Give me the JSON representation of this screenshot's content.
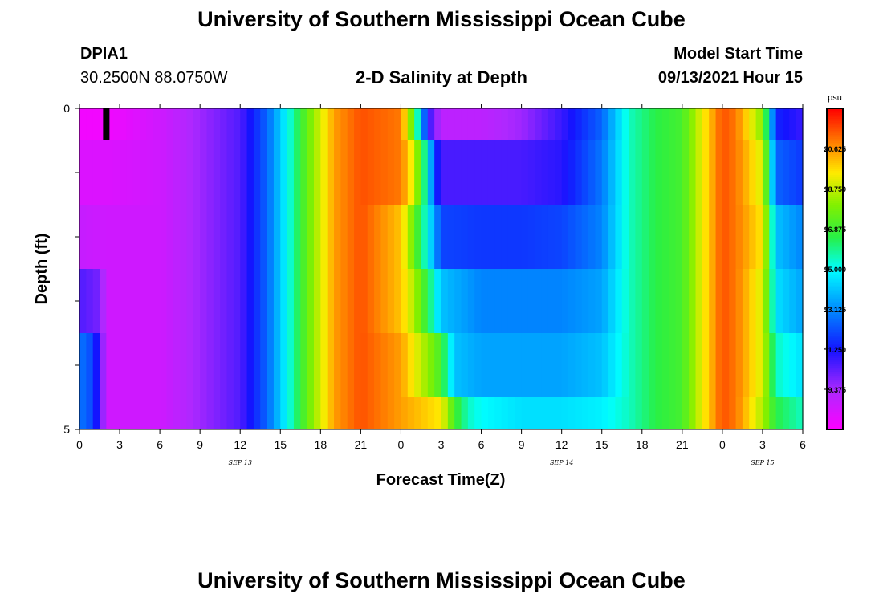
{
  "header": {
    "title": "University of Southern Mississippi Ocean Cube",
    "station_id": "DPIA1",
    "station_coords": "30.2500N  88.0750W",
    "plot_title": "2-D Salinity at Depth",
    "model_start_label": "Model Start Time",
    "model_start_value": "09/13/2021 Hour 15"
  },
  "footer": {
    "title": "University of Southern Mississippi Ocean Cube"
  },
  "chart_data": {
    "type": "heatmap",
    "title": "2-D Salinity at Depth",
    "xlabel": "Forecast Time(Z)",
    "ylabel": "Depth (ft)",
    "x_unit": "hours from Sep 13 00Z",
    "xlim": [
      0,
      54
    ],
    "ylim": [
      0,
      5
    ],
    "x_ticks": [
      0,
      3,
      6,
      9,
      12,
      15,
      18,
      21,
      24,
      27,
      30,
      33,
      36,
      39,
      42,
      45,
      48,
      51,
      54
    ],
    "x_tick_labels": [
      "0",
      "3",
      "6",
      "9",
      "12",
      "15",
      "18",
      "21",
      "0",
      "3",
      "6",
      "9",
      "12",
      "15",
      "18",
      "21",
      "0",
      "3",
      "6"
    ],
    "y_ticks": [
      0,
      1,
      2,
      3,
      4,
      5
    ],
    "y_tick_labels": [
      "0",
      "",
      "",
      "",
      "",
      "5"
    ],
    "date_labels": [
      {
        "x": 12,
        "text": "SEP 13"
      },
      {
        "x": 36,
        "text": "SEP 14"
      },
      {
        "x": 51,
        "text": "SEP 15"
      }
    ],
    "colorbar": {
      "unit": "psu",
      "vmin": 7.5,
      "vmax": 22.5,
      "ticks": [
        9.375,
        11.25,
        13.125,
        15.0,
        16.875,
        18.75,
        20.625
      ],
      "tick_labels": [
        "9.375",
        "11.250",
        "13.125",
        "15.000",
        "16.875",
        "18.750",
        "20.625"
      ]
    },
    "depth_layers": [
      0,
      1,
      2,
      3,
      4,
      5
    ],
    "salinity_profiles": [
      {
        "depth_band": "0-0.5",
        "x": [
          0,
          2,
          6,
          9,
          12,
          14,
          17,
          19,
          21,
          24,
          25,
          26,
          27,
          30,
          33,
          36,
          39,
          41,
          43,
          45,
          48,
          49,
          51,
          52,
          54
        ],
        "values": [
          7.8,
          7.8,
          8.6,
          9.5,
          10.5,
          12.5,
          17.5,
          20.5,
          21.5,
          21.0,
          17.0,
          11.0,
          9.0,
          9.0,
          9.5,
          10.8,
          12.5,
          15.5,
          16.5,
          17.0,
          21.5,
          21.0,
          18.0,
          11.5,
          10.8
        ]
      },
      {
        "depth_band": "0.5-1.5",
        "x": [
          0,
          2,
          6,
          9,
          12,
          14,
          17,
          19,
          21,
          24,
          25,
          26,
          26.5,
          27,
          30,
          33,
          36,
          39,
          41,
          43,
          45,
          48,
          49,
          51,
          52,
          54
        ],
        "values": [
          8.3,
          8.3,
          8.6,
          9.5,
          10.5,
          12.5,
          17.5,
          20.5,
          21.5,
          21.0,
          19.0,
          15.0,
          12.0,
          10.6,
          10.6,
          10.6,
          11.0,
          12.8,
          15.5,
          16.5,
          17.0,
          21.5,
          21.0,
          19.0,
          12.5,
          11.8
        ]
      },
      {
        "depth_band": "1.5-2.5",
        "x": [
          0,
          2,
          6,
          9,
          12,
          14,
          17,
          19,
          21,
          24,
          25,
          26,
          27,
          30,
          33,
          36,
          39,
          41,
          43,
          45,
          48,
          49,
          51,
          52,
          54
        ],
        "values": [
          8.8,
          8.6,
          8.6,
          9.5,
          10.5,
          12.5,
          17.5,
          20.5,
          21.5,
          20.0,
          17.5,
          15.0,
          12.0,
          11.8,
          11.8,
          12.0,
          13.0,
          15.5,
          16.5,
          17.0,
          21.5,
          21.0,
          19.5,
          14.0,
          13.0
        ]
      },
      {
        "depth_band": "2.5-3.5",
        "x": [
          0,
          1.5,
          2,
          6,
          9,
          12,
          14,
          17,
          19,
          21,
          24,
          25,
          26,
          27,
          30,
          33,
          36,
          39,
          41,
          43,
          45,
          48,
          49,
          51,
          52,
          54
        ],
        "values": [
          10.5,
          10.0,
          8.6,
          8.6,
          9.5,
          10.5,
          12.5,
          17.5,
          20.5,
          21.5,
          20.0,
          18.5,
          16.5,
          14.0,
          13.0,
          13.0,
          13.0,
          13.5,
          15.5,
          16.5,
          17.0,
          21.5,
          21.0,
          19.0,
          14.5,
          13.5
        ]
      },
      {
        "depth_band": "3.5-4.5",
        "x": [
          0,
          1,
          1.5,
          2,
          6,
          9,
          12,
          14,
          17,
          19,
          21,
          24,
          27,
          28,
          30,
          33,
          36,
          39,
          41,
          43,
          45,
          48,
          49,
          51,
          52,
          54
        ],
        "values": [
          12.8,
          12.0,
          10.5,
          8.6,
          8.6,
          9.5,
          10.5,
          12.5,
          17.5,
          20.5,
          21.5,
          20.5,
          17.0,
          14.0,
          13.5,
          13.5,
          13.5,
          14.0,
          15.5,
          16.5,
          17.0,
          21.5,
          21.0,
          19.0,
          15.5,
          14.5
        ]
      },
      {
        "depth_band": "4.5-5",
        "x": [
          0,
          1,
          1.5,
          2,
          6,
          9,
          12,
          14,
          17,
          19,
          21,
          24,
          27,
          28,
          29,
          30,
          33,
          36,
          39,
          41,
          43,
          45,
          48,
          49,
          51,
          52,
          54
        ],
        "values": [
          12.8,
          12.0,
          10.5,
          8.6,
          8.6,
          9.5,
          10.5,
          12.5,
          17.5,
          20.5,
          21.5,
          20.5,
          19.5,
          17.0,
          15.5,
          15.0,
          14.5,
          14.5,
          14.8,
          15.5,
          16.5,
          17.0,
          21.5,
          21.0,
          18.5,
          16.5,
          15.5
        ]
      }
    ],
    "marker": {
      "x": 2,
      "depth_range": [
        0,
        0.5
      ],
      "color": "#000000"
    }
  }
}
